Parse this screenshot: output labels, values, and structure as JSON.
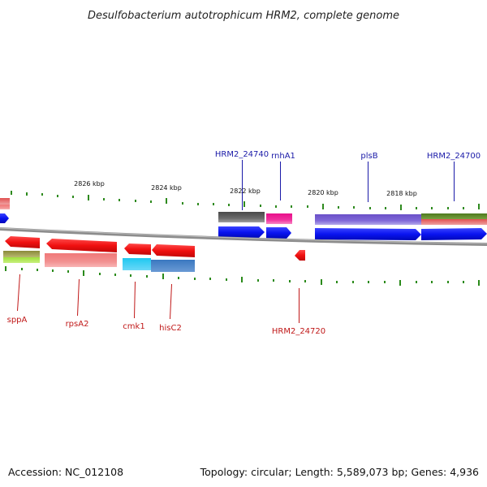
{
  "title": "Desulfobacterium autotrophicum HRM2, complete genome",
  "accession": "Accession: NC_012108",
  "summary": "Topology: circular; Length: 5,589,073 bp; Genes: 4,936",
  "kbp_labels": [
    "2826 kbp",
    "2824 kbp",
    "2822 kbp",
    "2820 kbp",
    "2818 kbp"
  ],
  "top_genes": [
    "HRM2_24740",
    "rnhA1",
    "plsB",
    "HRM2_24700"
  ],
  "bottom_genes": [
    "sppA",
    "rpsA2",
    "cmk1",
    "hisC2",
    "HRM2_24720"
  ],
  "colors": {
    "forward_cds": "#0a14f0",
    "reverse_cds": "#f01010",
    "top_tick": "#2e8a1e",
    "bottom_tick": "#2a8a1a",
    "backbone": "#8c8c8c",
    "top_label": "#1a1aa8",
    "bottom_label": "#c01818"
  }
}
